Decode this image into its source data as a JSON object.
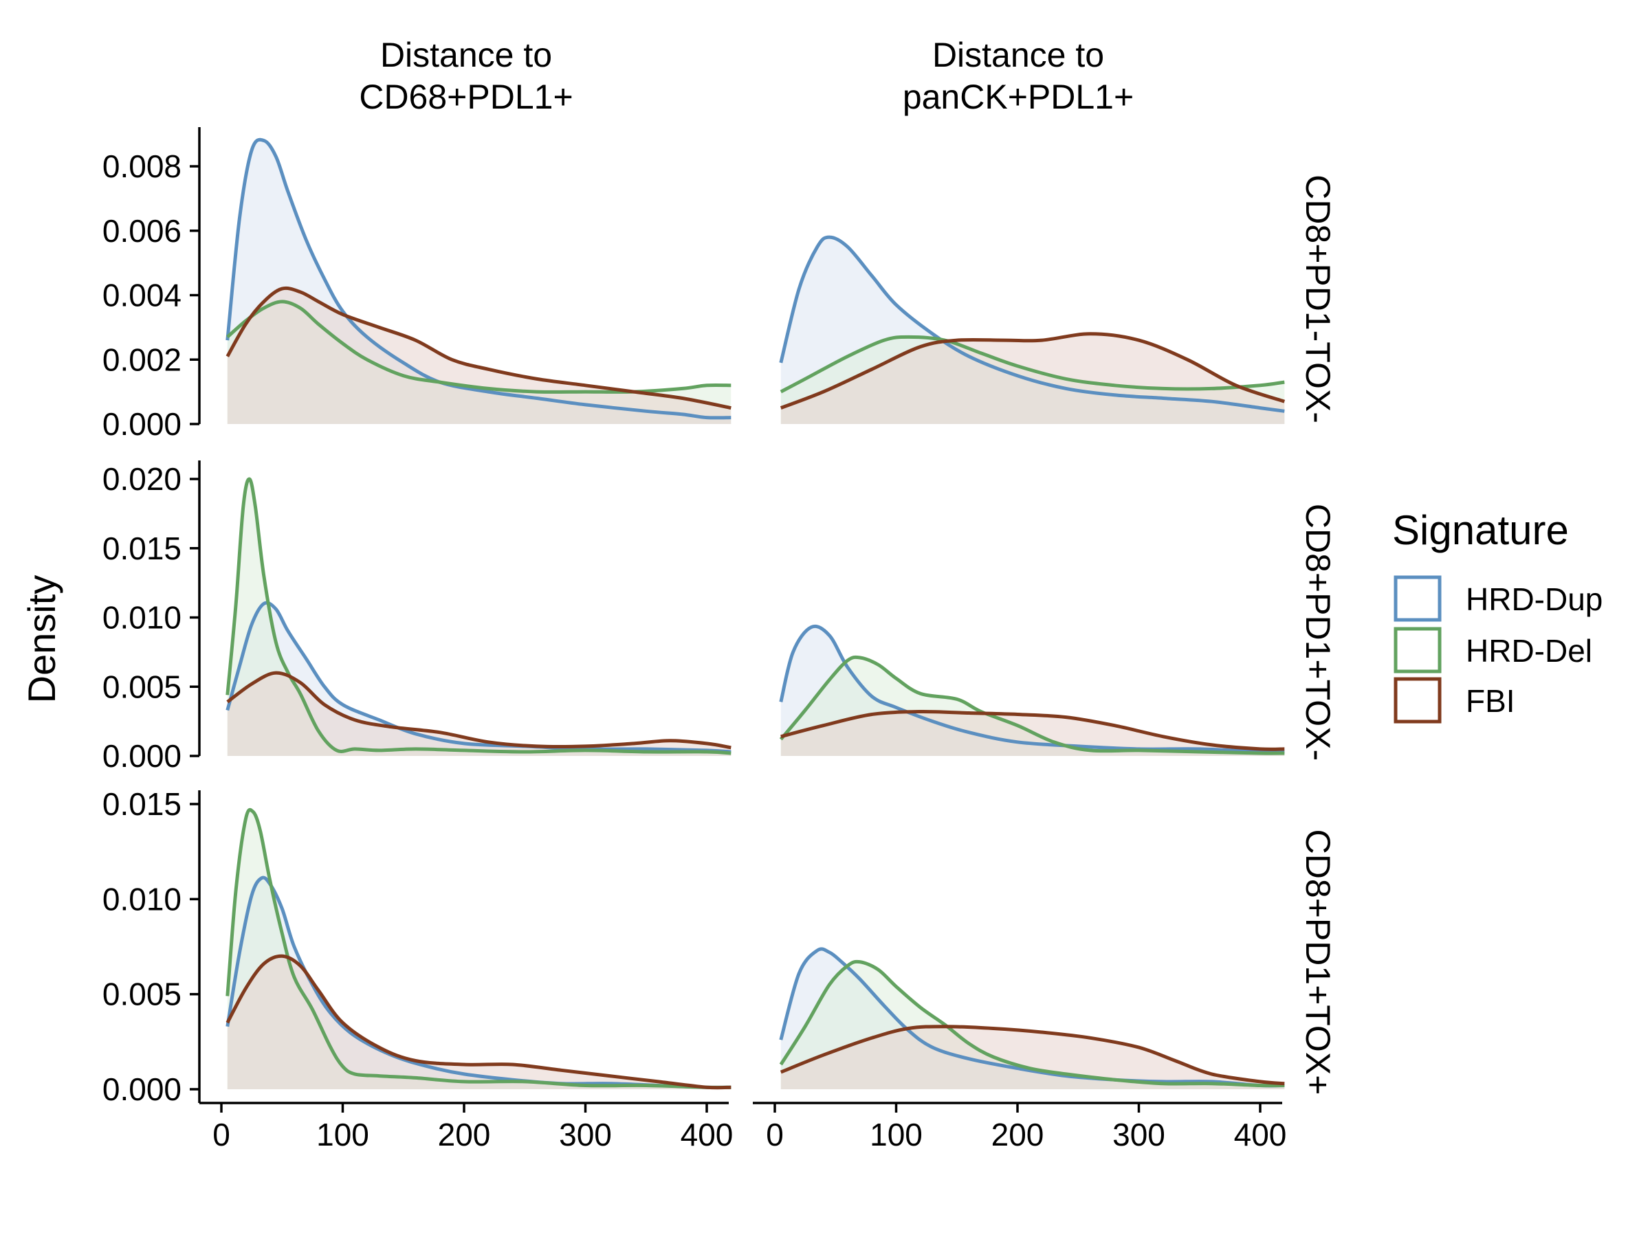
{
  "chart_data": {
    "type": "area",
    "subtype": "density-facets",
    "ylabel": "Density",
    "xlabel": "",
    "x_ticks": [
      0,
      100,
      200,
      300,
      400
    ],
    "xlim": [
      0,
      420
    ],
    "columns": [
      {
        "id": "cd68",
        "title_lines": [
          "Distance to",
          "CD68+PDL1+"
        ]
      },
      {
        "id": "panck",
        "title_lines": [
          "Distance to",
          "panCK+PDL1+"
        ]
      }
    ],
    "rows": [
      {
        "id": "tox_neg_pd1_neg",
        "label": "CD8+PD1-TOX-",
        "ylim": [
          0,
          0.0092
        ],
        "y_ticks": [
          0,
          0.002,
          0.004,
          0.006,
          0.008
        ],
        "tick_labels": [
          "0.000",
          "0.002",
          "0.004",
          "0.006",
          "0.008"
        ]
      },
      {
        "id": "pd1_pos_tox_neg",
        "label": "CD8+PD1+TOX-",
        "ylim": [
          0,
          0.0212
        ],
        "y_ticks": [
          0,
          0.005,
          0.01,
          0.015,
          0.02
        ],
        "tick_labels": [
          "0.000",
          "0.005",
          "0.010",
          "0.015",
          "0.020"
        ]
      },
      {
        "id": "pd1_pos_tox_pos",
        "label": "CD8+PD1+TOX+",
        "ylim": [
          0,
          0.0154
        ],
        "y_ticks": [
          0,
          0.005,
          0.01,
          0.015
        ],
        "tick_labels": [
          "0.000",
          "0.005",
          "0.010",
          "0.015"
        ]
      }
    ],
    "legend": {
      "title": "Signature",
      "position": "right",
      "items": [
        {
          "name": "HRD-Dup",
          "color": "#5b8fc0"
        },
        {
          "name": "HRD-Del",
          "color": "#62a25f"
        },
        {
          "name": "FBI",
          "color": "#803a1d"
        }
      ]
    },
    "series_colors": {
      "HRD-Dup": {
        "line": "#5b8fc0",
        "fill": "#dce6f2"
      },
      "HRD-Del": {
        "line": "#62a25f",
        "fill": "#dfeedd"
      },
      "FBI": {
        "line": "#803a1d",
        "fill": "#e8d4ce"
      }
    },
    "panels": [
      {
        "row": 0,
        "col": 0,
        "series": [
          {
            "name": "HRD-Dup",
            "x": [
              5,
              15,
              25,
              35,
              45,
              55,
              70,
              85,
              100,
              120,
              150,
              180,
              220,
              260,
              300,
              350,
              380,
              400,
              420
            ],
            "y": [
              0.0026,
              0.0064,
              0.0085,
              0.0088,
              0.0083,
              0.0072,
              0.0057,
              0.0045,
              0.0035,
              0.0027,
              0.0019,
              0.0013,
              0.001,
              0.0008,
              0.0006,
              0.0004,
              0.0003,
              0.0002,
              0.0002
            ]
          },
          {
            "name": "HRD-Del",
            "x": [
              5,
              20,
              35,
              50,
              65,
              80,
              100,
              120,
              150,
              180,
              220,
              260,
              300,
              340,
              380,
              400,
              420
            ],
            "y": [
              0.0027,
              0.0032,
              0.0036,
              0.0038,
              0.0036,
              0.0031,
              0.0025,
              0.002,
              0.0015,
              0.0013,
              0.0011,
              0.001,
              0.001,
              0.001,
              0.0011,
              0.0012,
              0.0012
            ]
          },
          {
            "name": "FBI",
            "x": [
              5,
              20,
              35,
              50,
              65,
              80,
              100,
              130,
              160,
              190,
              220,
              260,
              300,
              340,
              380,
              420
            ],
            "y": [
              0.0021,
              0.0031,
              0.0038,
              0.0042,
              0.0041,
              0.0038,
              0.0034,
              0.003,
              0.0026,
              0.002,
              0.0017,
              0.0014,
              0.0012,
              0.001,
              0.0008,
              0.0005
            ]
          }
        ]
      },
      {
        "row": 0,
        "col": 1,
        "series": [
          {
            "name": "HRD-Dup",
            "x": [
              5,
              20,
              35,
              45,
              60,
              80,
              100,
              130,
              160,
              200,
              240,
              280,
              320,
              360,
              400,
              420
            ],
            "y": [
              0.0019,
              0.0042,
              0.0055,
              0.0058,
              0.0055,
              0.0046,
              0.0037,
              0.0028,
              0.0021,
              0.0015,
              0.0011,
              0.0009,
              0.0008,
              0.0007,
              0.0005,
              0.0004
            ]
          },
          {
            "name": "HRD-Del",
            "x": [
              5,
              30,
              60,
              90,
              110,
              140,
              170,
              200,
              240,
              280,
              320,
              360,
              400,
              420
            ],
            "y": [
              0.001,
              0.0015,
              0.0021,
              0.0026,
              0.0027,
              0.0026,
              0.0022,
              0.0018,
              0.0014,
              0.0012,
              0.0011,
              0.0011,
              0.0012,
              0.0013
            ]
          },
          {
            "name": "FBI",
            "x": [
              5,
              40,
              80,
              120,
              150,
              190,
              220,
              260,
              300,
              340,
              380,
              420
            ],
            "y": [
              0.0005,
              0.001,
              0.0017,
              0.0024,
              0.0026,
              0.0026,
              0.0026,
              0.0028,
              0.0026,
              0.002,
              0.0012,
              0.0007
            ]
          }
        ]
      },
      {
        "row": 1,
        "col": 0,
        "series": [
          {
            "name": "HRD-Dup",
            "x": [
              5,
              15,
              25,
              35,
              45,
              55,
              70,
              85,
              100,
              130,
              160,
              200,
              250,
              300,
              350,
              400,
              420
            ],
            "y": [
              0.0033,
              0.0065,
              0.0095,
              0.011,
              0.0106,
              0.009,
              0.007,
              0.005,
              0.0037,
              0.0026,
              0.0016,
              0.0009,
              0.0007,
              0.0005,
              0.0005,
              0.0004,
              0.0003
            ]
          },
          {
            "name": "HRD-Del",
            "x": [
              5,
              12,
              18,
              23,
              28,
              35,
              45,
              55,
              65,
              80,
              95,
              110,
              130,
              160,
              200,
              250,
              300,
              350,
              400,
              420
            ],
            "y": [
              0.0044,
              0.011,
              0.018,
              0.02,
              0.018,
              0.013,
              0.0082,
              0.006,
              0.0045,
              0.0018,
              0.0004,
              0.0005,
              0.0004,
              0.0005,
              0.0004,
              0.0003,
              0.0004,
              0.0003,
              0.0003,
              0.0002
            ]
          },
          {
            "name": "FBI",
            "x": [
              5,
              25,
              45,
              65,
              85,
              110,
              140,
              180,
              220,
              260,
              300,
              340,
              370,
              400,
              420
            ],
            "y": [
              0.0039,
              0.0052,
              0.006,
              0.0053,
              0.0037,
              0.0026,
              0.0021,
              0.0017,
              0.001,
              0.0007,
              0.0007,
              0.0009,
              0.0011,
              0.0009,
              0.0006
            ]
          }
        ]
      },
      {
        "row": 1,
        "col": 1,
        "series": [
          {
            "name": "HRD-Dup",
            "x": [
              5,
              15,
              30,
              45,
              60,
              80,
              100,
              130,
              160,
              200,
              250,
              300,
              350,
              400,
              420
            ],
            "y": [
              0.0039,
              0.0075,
              0.0093,
              0.0087,
              0.0064,
              0.0043,
              0.0035,
              0.0025,
              0.0017,
              0.001,
              0.0007,
              0.0005,
              0.0005,
              0.0003,
              0.0003
            ]
          },
          {
            "name": "HRD-Del",
            "x": [
              5,
              25,
              45,
              60,
              70,
              85,
              100,
              120,
              150,
              170,
              200,
              230,
              260,
              300,
              350,
              400,
              420
            ],
            "y": [
              0.0012,
              0.0033,
              0.0055,
              0.0069,
              0.0071,
              0.0066,
              0.0056,
              0.0045,
              0.0041,
              0.0032,
              0.0022,
              0.001,
              0.0004,
              0.0004,
              0.0003,
              0.0002,
              0.0002
            ]
          },
          {
            "name": "FBI",
            "x": [
              5,
              40,
              80,
              120,
              160,
              200,
              240,
              280,
              320,
              360,
              400,
              420
            ],
            "y": [
              0.0014,
              0.0022,
              0.003,
              0.0032,
              0.0031,
              0.003,
              0.0028,
              0.0022,
              0.0014,
              0.0008,
              0.0005,
              0.0005
            ]
          }
        ]
      },
      {
        "row": 2,
        "col": 0,
        "series": [
          {
            "name": "HRD-Dup",
            "x": [
              5,
              15,
              25,
              33,
              40,
              50,
              60,
              75,
              90,
              110,
              140,
              170,
              200,
              240,
              280,
              320,
              360,
              400,
              420
            ],
            "y": [
              0.0033,
              0.0072,
              0.0102,
              0.0111,
              0.0108,
              0.0095,
              0.0075,
              0.0055,
              0.004,
              0.0028,
              0.0018,
              0.0012,
              0.0008,
              0.0005,
              0.0003,
              0.0003,
              0.0002,
              0.0001,
              0.0001
            ]
          },
          {
            "name": "HRD-Del",
            "x": [
              5,
              12,
              20,
              26,
              32,
              40,
              50,
              60,
              75,
              90,
              100,
              110,
              130,
              160,
              200,
              250,
              300,
              350,
              400,
              420
            ],
            "y": [
              0.0049,
              0.0105,
              0.0142,
              0.0146,
              0.0136,
              0.011,
              0.0082,
              0.0059,
              0.0042,
              0.0022,
              0.0012,
              0.0008,
              0.0007,
              0.0006,
              0.0004,
              0.0004,
              0.0002,
              0.0002,
              0.0001,
              0.0001
            ]
          },
          {
            "name": "FBI",
            "x": [
              5,
              20,
              35,
              50,
              65,
              80,
              100,
              130,
              160,
              200,
              240,
              280,
              320,
              360,
              400,
              420
            ],
            "y": [
              0.0035,
              0.0053,
              0.0066,
              0.007,
              0.0065,
              0.0052,
              0.0035,
              0.0022,
              0.0015,
              0.0013,
              0.0013,
              0.001,
              0.0007,
              0.0004,
              0.0001,
              0.0001
            ]
          }
        ]
      },
      {
        "row": 2,
        "col": 1,
        "series": [
          {
            "name": "HRD-Dup",
            "x": [
              5,
              20,
              35,
              45,
              55,
              70,
              90,
              110,
              130,
              160,
              200,
              240,
              280,
              320,
              360,
              400,
              420
            ],
            "y": [
              0.0026,
              0.0061,
              0.0073,
              0.0072,
              0.0067,
              0.0058,
              0.0044,
              0.0031,
              0.0022,
              0.0016,
              0.0011,
              0.0007,
              0.0005,
              0.0004,
              0.0004,
              0.0002,
              0.0002
            ]
          },
          {
            "name": "HRD-Del",
            "x": [
              5,
              25,
              45,
              60,
              70,
              85,
              100,
              120,
              140,
              160,
              180,
              210,
              240,
              280,
              320,
              360,
              400,
              420
            ],
            "y": [
              0.0013,
              0.0033,
              0.0055,
              0.0065,
              0.0067,
              0.0063,
              0.0054,
              0.0043,
              0.0034,
              0.0024,
              0.0017,
              0.0011,
              0.0008,
              0.0005,
              0.0003,
              0.0003,
              0.0002,
              0.0002
            ]
          },
          {
            "name": "FBI",
            "x": [
              5,
              40,
              80,
              110,
              140,
              180,
              220,
              260,
              300,
              330,
              360,
              400,
              420
            ],
            "y": [
              0.0009,
              0.0018,
              0.0027,
              0.0032,
              0.0033,
              0.0032,
              0.003,
              0.0027,
              0.0022,
              0.0015,
              0.0008,
              0.0004,
              0.0003
            ]
          }
        ]
      }
    ]
  }
}
